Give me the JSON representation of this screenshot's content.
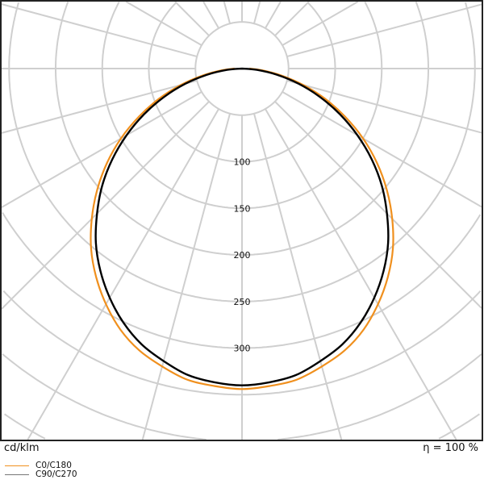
{
  "chart_data": {
    "type": "polar",
    "unit_label": "cd/klm",
    "efficiency_label": "η = 100 %",
    "radial_ticks": [
      100,
      150,
      200,
      250,
      300
    ],
    "radial_grid_step": 50,
    "angular_grid_step_deg": 15,
    "grid": true,
    "legend_placement": "bottom-left",
    "angles_deg": [
      0,
      5,
      10,
      15,
      20,
      25,
      30,
      35,
      40,
      45,
      50,
      55,
      60,
      65,
      70,
      75,
      80,
      85,
      90
    ],
    "series": [
      {
        "name": "C0/C180",
        "color": "#f0901e",
        "values": [
          344,
          342,
          339,
          331,
          322,
          309,
          292,
          273,
          252,
          228,
          203,
          177,
          150,
          122,
          95,
          68,
          43,
          22,
          8
        ]
      },
      {
        "name": "C90/C270",
        "color": "#000000",
        "values": [
          340,
          338,
          334,
          325,
          315,
          301,
          284,
          265,
          244,
          220,
          196,
          170,
          143,
          116,
          89,
          63,
          38,
          16,
          0
        ]
      }
    ]
  }
}
